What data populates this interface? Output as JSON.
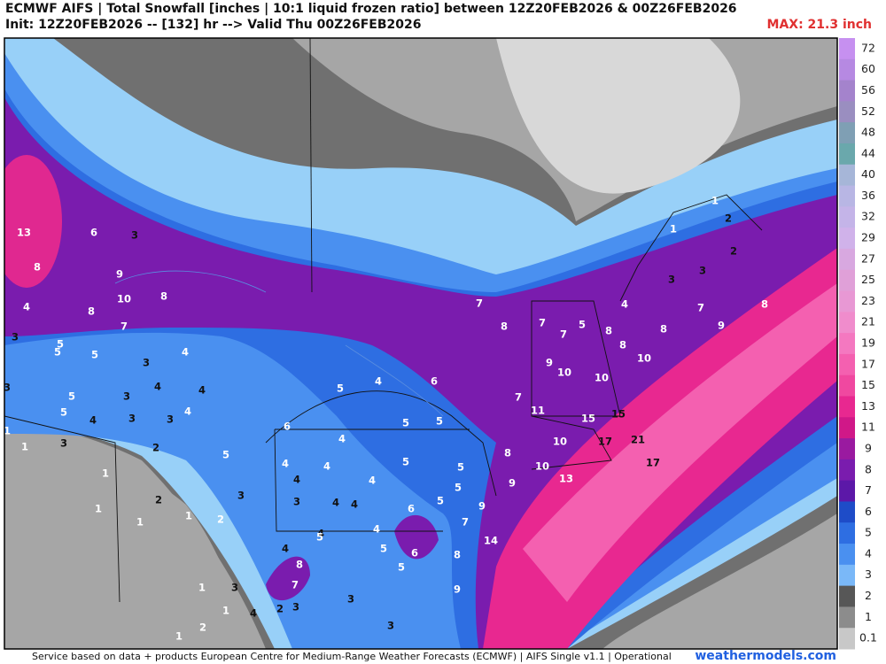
{
  "header": {
    "title": "ECMWF AIFS | Total Snowfall [inches | 10:1 liquid frozen ratio] between 12Z20FEB2026 & 00Z26FEB2026",
    "subtitle": "Init: 12Z20FEB2026 -- [132] hr --> Valid Thu 00Z26FEB2026",
    "max": "MAX: 21.3 inch"
  },
  "colorbar": [
    {
      "label": "72",
      "color": "#c690f0"
    },
    {
      "label": "60",
      "color": "#b689e2"
    },
    {
      "label": "56",
      "color": "#a483cc"
    },
    {
      "label": "52",
      "color": "#9a8ec0"
    },
    {
      "label": "48",
      "color": "#7f9fb4"
    },
    {
      "label": "44",
      "color": "#6aa8ac"
    },
    {
      "label": "40",
      "color": "#a6b6d8"
    },
    {
      "label": "36",
      "color": "#b8b6e4"
    },
    {
      "label": "32",
      "color": "#c4b4e8"
    },
    {
      "label": "29",
      "color": "#d0b2ea"
    },
    {
      "label": "27",
      "color": "#d8a8e0"
    },
    {
      "label": "25",
      "color": "#e0a0d8"
    },
    {
      "label": "23",
      "color": "#e898d4"
    },
    {
      "label": "21",
      "color": "#f08ccc"
    },
    {
      "label": "19",
      "color": "#f478c0"
    },
    {
      "label": "17",
      "color": "#f460b0"
    },
    {
      "label": "15",
      "color": "#f048a0"
    },
    {
      "label": "13",
      "color": "#e82890"
    },
    {
      "label": "11",
      "color": "#d01888"
    },
    {
      "label": "9",
      "color": "#9a1aa0"
    },
    {
      "label": "8",
      "color": "#7a1cae"
    },
    {
      "label": "7",
      "color": "#5c18a8"
    },
    {
      "label": "6",
      "color": "#1e4cc8"
    },
    {
      "label": "5",
      "color": "#2e6ee2"
    },
    {
      "label": "4",
      "color": "#4a90f0"
    },
    {
      "label": "3",
      "color": "#7ab8f8"
    },
    {
      "label": "2",
      "color": "#575757"
    },
    {
      "label": "1",
      "color": "#8c8c8c"
    },
    {
      "label": "0.1",
      "color": "#c8c8c8"
    }
  ],
  "map_labels": [
    "13",
    "6",
    "3",
    "8",
    "9",
    "10",
    "8",
    "8",
    "4",
    "7",
    "3",
    "5",
    "5",
    "5",
    "3",
    "4",
    "4",
    "4",
    "3",
    "5",
    "5",
    "4",
    "3",
    "3",
    "4",
    "3",
    "1",
    "1",
    "3",
    "2",
    "5",
    "1",
    "2",
    "1",
    "1",
    "1",
    "2",
    "3",
    "5",
    "4",
    "6",
    "5",
    "5",
    "6",
    "4",
    "5",
    "4",
    "4",
    "4",
    "4",
    "5",
    "5",
    "3",
    "4",
    "4",
    "6",
    "5",
    "4",
    "5",
    "4",
    "5",
    "6",
    "5",
    "4",
    "8",
    "7",
    "1",
    "3",
    "1",
    "4",
    "2",
    "3",
    "3",
    "1",
    "2",
    "3",
    "7",
    "8",
    "7",
    "7",
    "5",
    "4",
    "8",
    "8",
    "8",
    "7",
    "9",
    "8",
    "10",
    "9",
    "10",
    "10",
    "7",
    "11",
    "15",
    "15",
    "10",
    "17",
    "21",
    "17",
    "10",
    "13",
    "8",
    "9",
    "9",
    "7",
    "14",
    "8",
    "9",
    "1",
    "2",
    "1",
    "2",
    "3",
    "3"
  ],
  "footer": {
    "credit": "Service based on data + products European Centre for Medium-Range Weather Forecasts (ECMWF) | AIFS Single v1.1 | Operational",
    "site": "weathermodels.com"
  }
}
